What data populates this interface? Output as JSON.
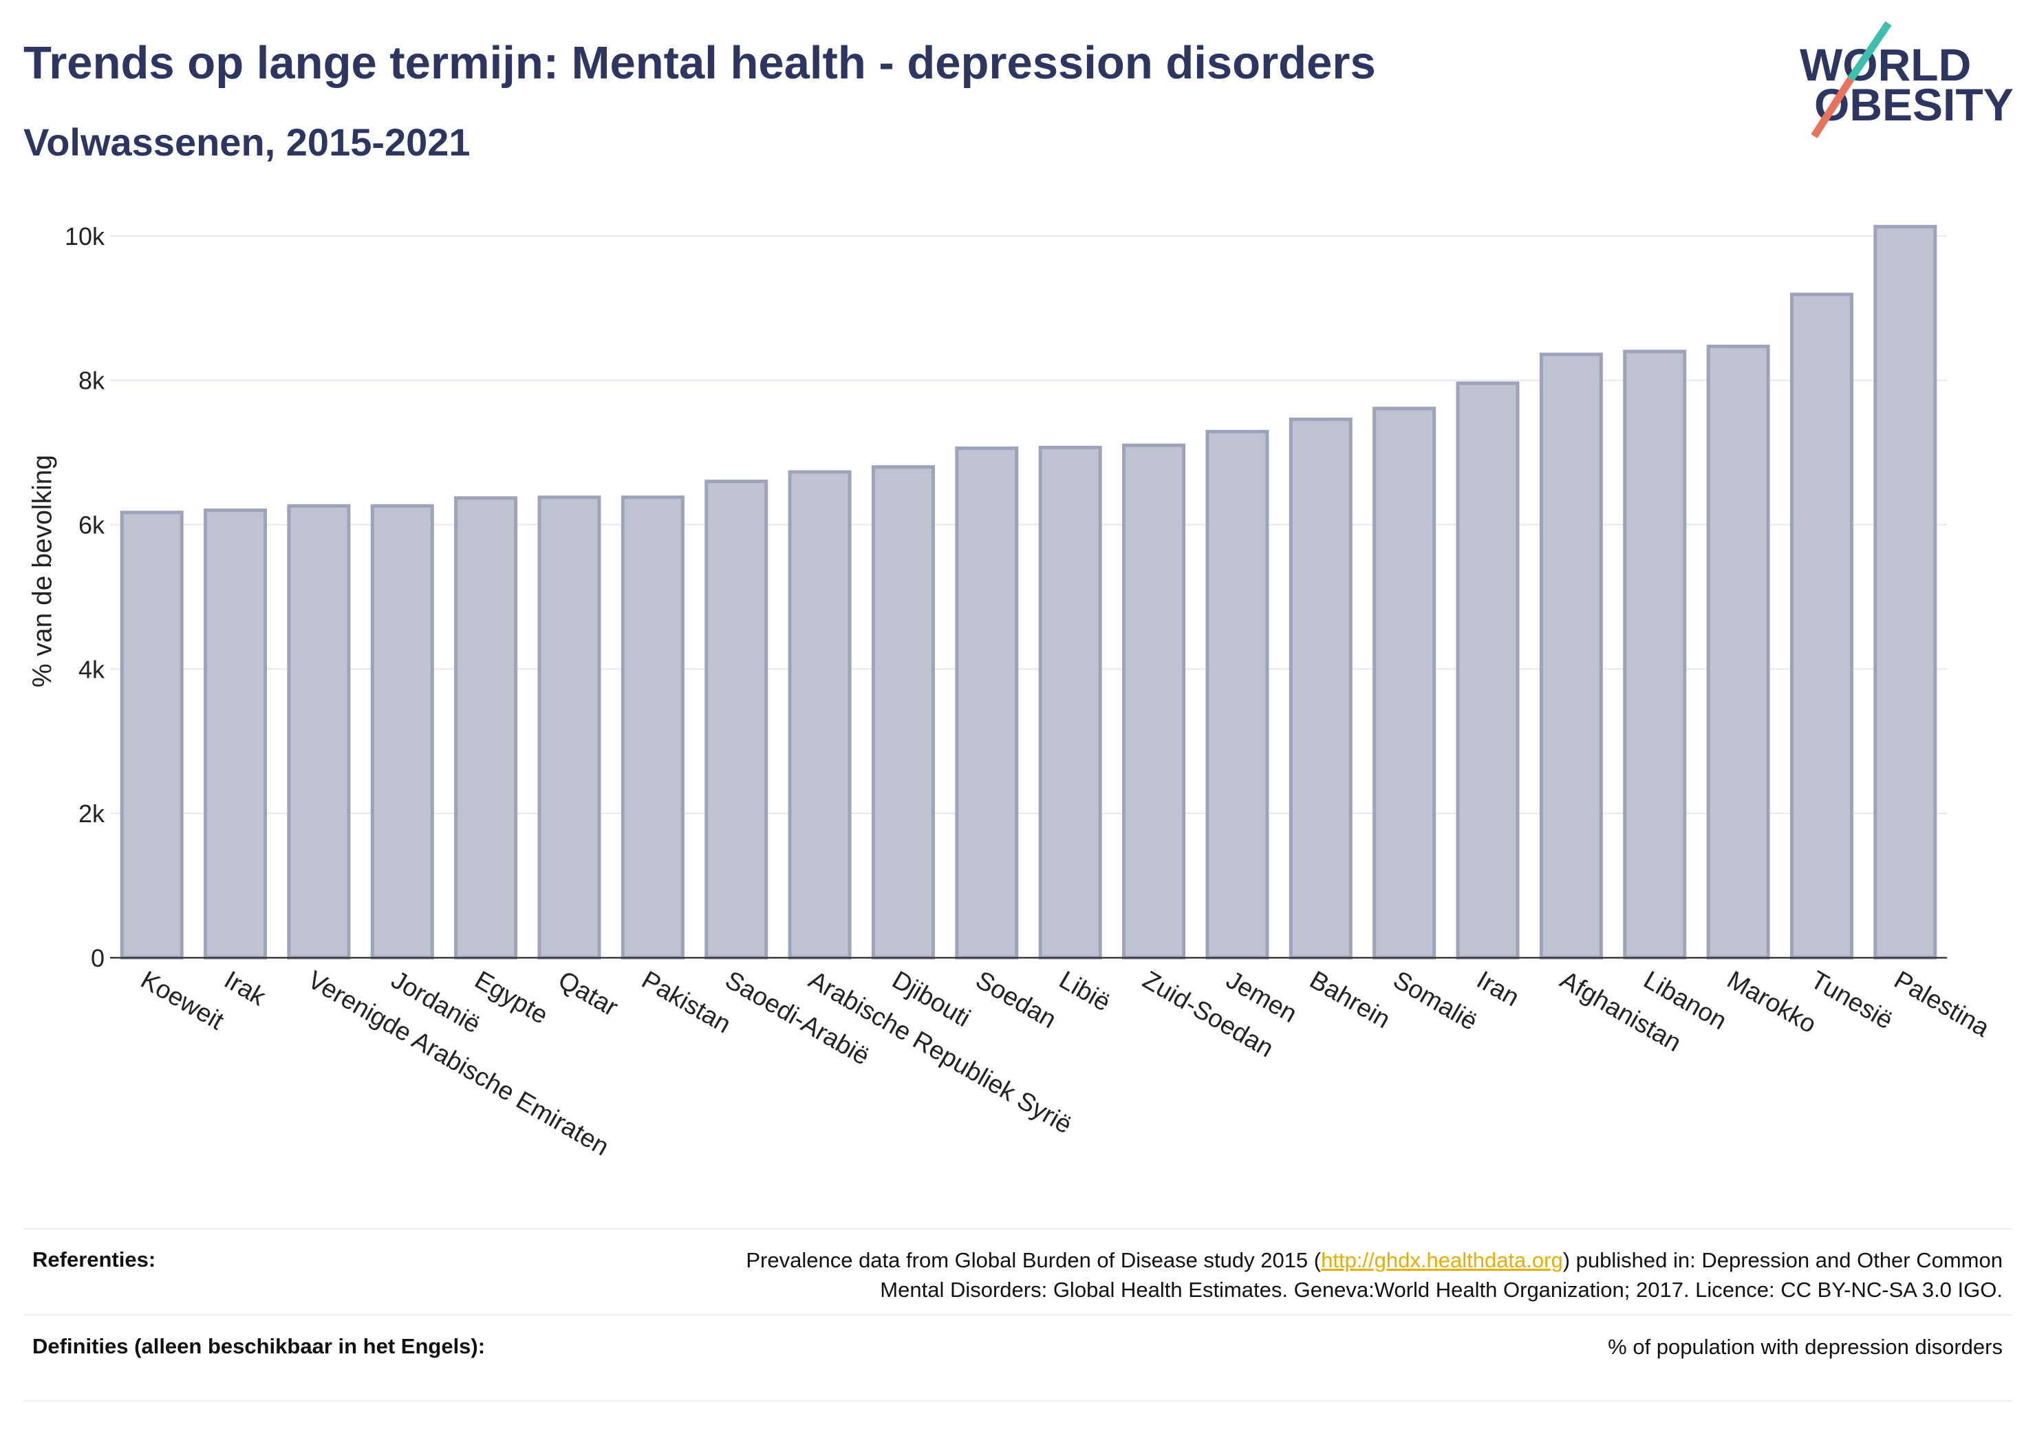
{
  "chart_data": {
    "type": "bar",
    "title": "Trends op lange termijn: Mental health - depression disorders",
    "subtitle": "Volwassenen, 2015-2021",
    "ylabel": "% van de bevolking",
    "categories": [
      "Koeweit",
      "Irak",
      "Verenigde Arabische Emiraten",
      "Jordanië",
      "Egypte",
      "Qatar",
      "Pakistan",
      "Saoedi-Arabië",
      "Arabische Republiek Syrië",
      "Djibouti",
      "Soedan",
      "Libië",
      "Zuid-Soedan",
      "Jemen",
      "Bahrein",
      "Somalië",
      "Iran",
      "Afghanistan",
      "Libanon",
      "Marokko",
      "Tunesië",
      "Palestina"
    ],
    "values": [
      6170,
      6200,
      6260,
      6260,
      6370,
      6380,
      6380,
      6600,
      6730,
      6800,
      7060,
      7070,
      7100,
      7290,
      7460,
      7610,
      7960,
      8360,
      8400,
      8470,
      9190,
      10130
    ],
    "ylim": [
      0,
      10200
    ],
    "yticks": [
      0,
      2000,
      4000,
      6000,
      8000,
      10000
    ],
    "ytick_labels": [
      "0",
      "2k",
      "4k",
      "6k",
      "8k",
      "10k"
    ],
    "grid": true,
    "colors": {
      "bar_fill": "#bfc2d0",
      "bar_edge": "#9ea3ba",
      "grid": "#e6e7ee",
      "zero_line": "#3a3a3a",
      "tick_text": "#222222"
    }
  },
  "logo": {
    "line1": "WORLD",
    "line2": "OBESITY",
    "colors": {
      "text": "#2d3561",
      "slash_top": "#3ebfae",
      "slash_bottom": "#e8735d"
    }
  },
  "footer": {
    "references_label": "Referenties:",
    "references_line1_before_link": "Prevalence data from Global Burden of Disease study 2015 (",
    "references_link": "http://ghdx.healthdata.org",
    "references_line1_after_link": ") published in: Depression and Other Common",
    "references_line2": "Mental Disorders: Global Health Estimates. Geneva:World Health Organization; 2017. Licence: CC BY-NC-SA 3.0 IGO.",
    "definitions_label": "Definities (alleen beschikbaar in het Engels):",
    "definitions_text": "% of population with depression disorders",
    "colors": {
      "link": "#e8ad00",
      "divider": "#eceef3"
    }
  },
  "theme": {
    "title_color": "#2d3561"
  }
}
